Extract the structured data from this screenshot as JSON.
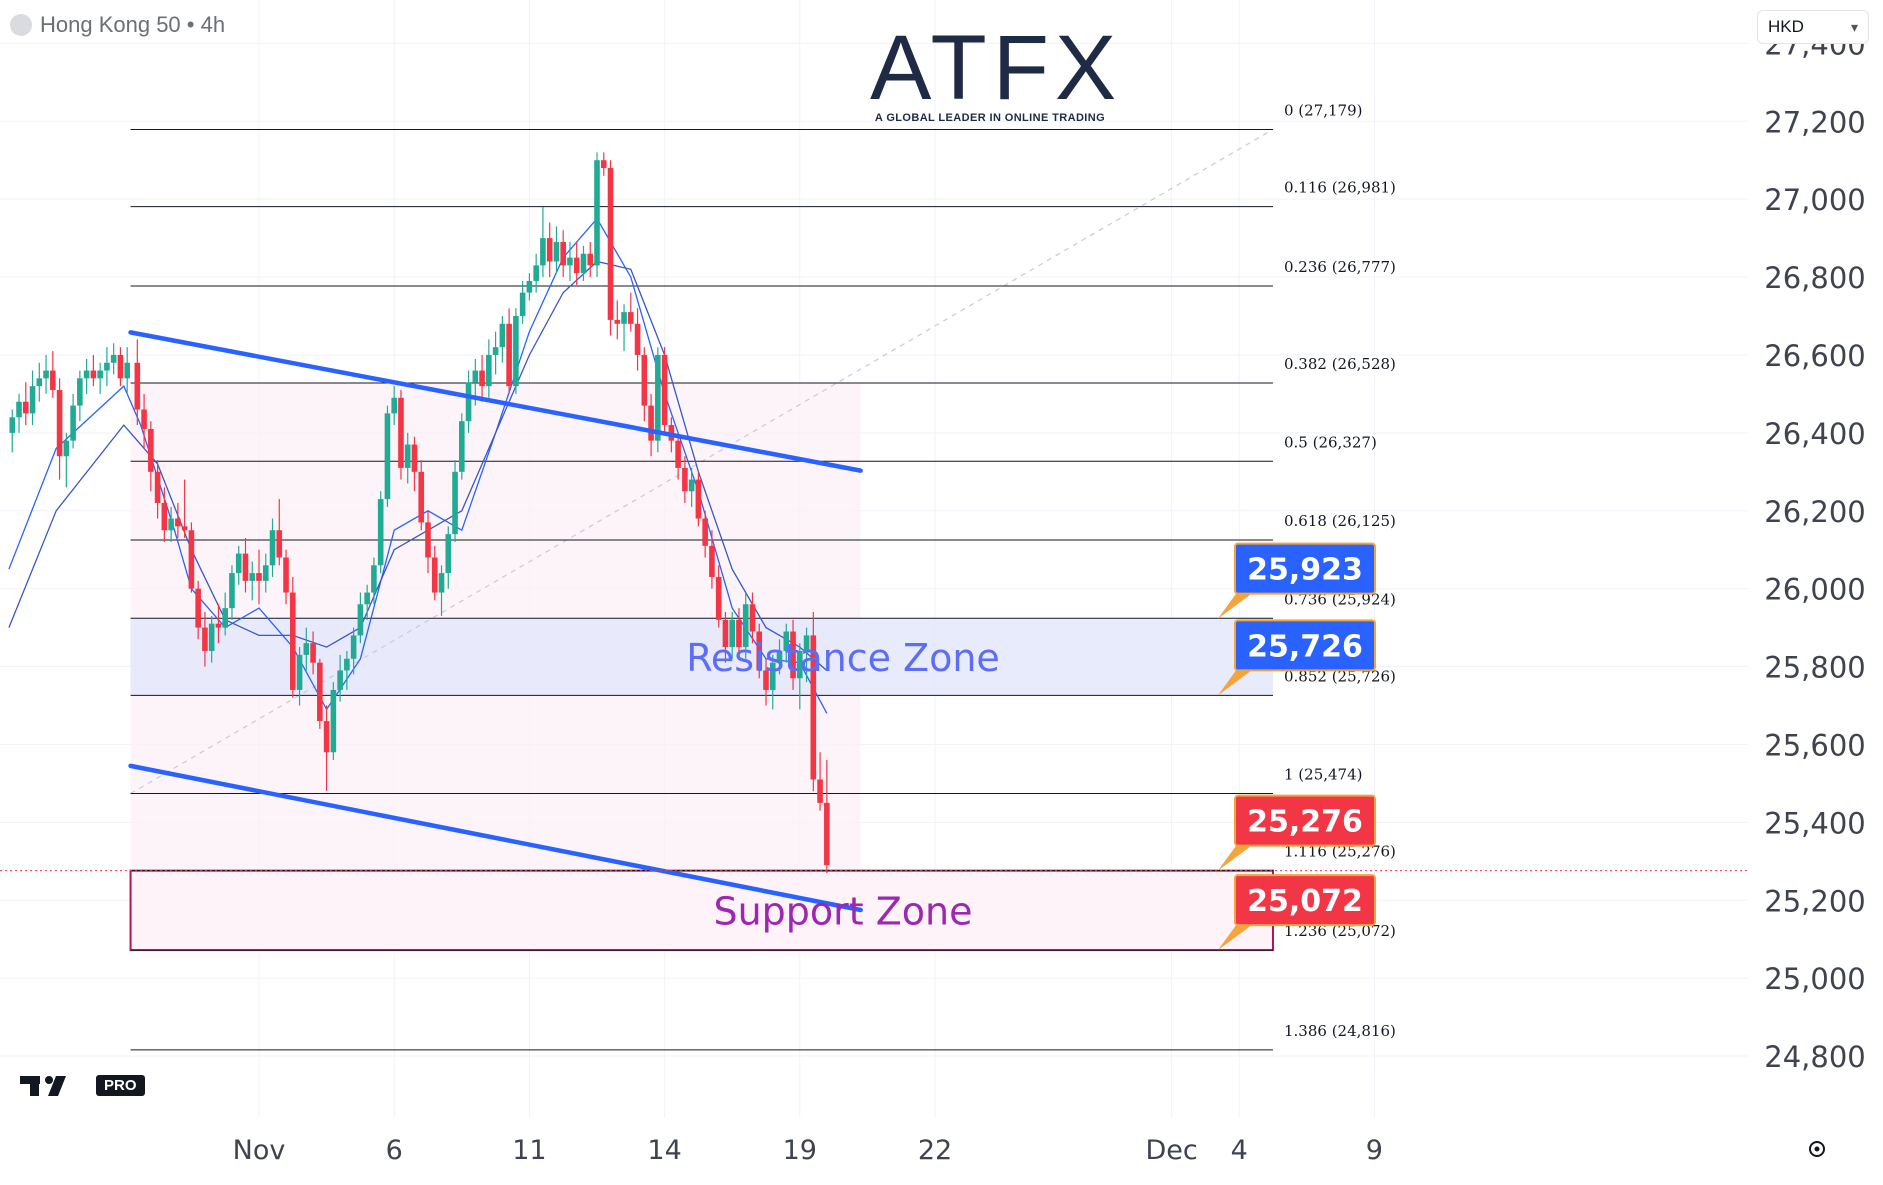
{
  "header": {
    "symbol_title": "Hong Kong 50 • 4h",
    "currency": "HKD"
  },
  "logo": {
    "brand": "ATFX",
    "tagline": "A GLOBAL LEADER IN ONLINE TRADING"
  },
  "watermark": {
    "label": "PRO"
  },
  "icons": {
    "symbol": "symbol-dot-icon",
    "dropdown": "chevron-down-icon",
    "settings": "gear-icon",
    "watermark": "tradingview-logo-icon"
  },
  "colors": {
    "up": "#22ab94",
    "down": "#f23645",
    "trendline": "#2962ff",
    "ma_fast": "#2962ff",
    "ma_slow": "#3a56c8",
    "resistance": "#5b6ef5",
    "support_border": "#b0165e",
    "support_text": "#9c27b0",
    "label_blue": "#2962ff",
    "label_red": "#f23645"
  },
  "chart_data": {
    "type": "candlestick",
    "ylim": [
      24700,
      27460
    ],
    "y_ticks": [
      "27,400",
      "27,200",
      "27,000",
      "26,800",
      "26,600",
      "26,400",
      "26,200",
      "26,000",
      "25,800",
      "25,600",
      "25,400",
      "25,200",
      "25,000",
      "24,800"
    ],
    "x_ticks": [
      "Nov",
      "6",
      "11",
      "14",
      "19",
      "22",
      "Dec",
      "4",
      "9"
    ],
    "fibonacci": [
      {
        "label": "0 (27,179)",
        "value": 27179
      },
      {
        "label": "0.116 (26,981)",
        "value": 26981
      },
      {
        "label": "0.236 (26,777)",
        "value": 26777
      },
      {
        "label": "0.382 (26,528)",
        "value": 26528
      },
      {
        "label": "0.5 (26,327)",
        "value": 26327
      },
      {
        "label": "0.618 (26,125)",
        "value": 26125
      },
      {
        "label": "0.736 (25,924)",
        "value": 25924
      },
      {
        "label": "0.852 (25,726)",
        "value": 25726
      },
      {
        "label": "1 (25,474)",
        "value": 25474
      },
      {
        "label": "1.116 (25,276)",
        "value": 25276
      },
      {
        "label": "1.236 (25,072)",
        "value": 25072
      },
      {
        "label": "1.386 (24,816)",
        "value": 24816
      }
    ],
    "zones": [
      {
        "label": "Resistance Zone",
        "from": 25726,
        "to": 25924
      },
      {
        "label": "Support Zone",
        "from": 25072,
        "to": 25276
      }
    ],
    "price_labels": [
      {
        "text": "25,923",
        "value": 25923
      },
      {
        "text": "25,726",
        "value": 25726
      },
      {
        "text": "25,276",
        "value": 25276
      },
      {
        "text": "25,072",
        "value": 25072
      }
    ],
    "channel": {
      "upper": {
        "from": [
          -3.8,
          26658
        ],
        "to": [
          17.8,
          26303
        ]
      },
      "lower": {
        "from": [
          -3.8,
          25545
        ],
        "to": [
          17.8,
          25175
        ]
      }
    },
    "candles": [
      [
        -7.3,
        26400,
        26460,
        26350,
        26440
      ],
      [
        -7.1,
        26440,
        26500,
        26400,
        26480
      ],
      [
        -6.9,
        26480,
        26530,
        26420,
        26450
      ],
      [
        -6.7,
        26450,
        26560,
        26420,
        26520
      ],
      [
        -6.5,
        26520,
        26580,
        26480,
        26540
      ],
      [
        -6.3,
        26540,
        26600,
        26500,
        26560
      ],
      [
        -6.1,
        26560,
        26610,
        26490,
        26510
      ],
      [
        -5.9,
        26510,
        26540,
        26280,
        26340
      ],
      [
        -5.7,
        26340,
        26400,
        26260,
        26380
      ],
      [
        -5.5,
        26380,
        26500,
        26360,
        26470
      ],
      [
        -5.3,
        26470,
        26560,
        26430,
        26540
      ],
      [
        -5.1,
        26540,
        26590,
        26500,
        26560
      ],
      [
        -4.9,
        26560,
        26600,
        26520,
        26540
      ],
      [
        -4.7,
        26540,
        26580,
        26500,
        26560
      ],
      [
        -4.5,
        26560,
        26620,
        26520,
        26580
      ],
      [
        -4.3,
        26580,
        26630,
        26550,
        26600
      ],
      [
        -4.1,
        26600,
        26620,
        26520,
        26540
      ],
      [
        -3.9,
        26540,
        26620,
        26500,
        26580
      ],
      [
        -3.6,
        26580,
        26640,
        26420,
        26460
      ],
      [
        -3.4,
        26460,
        26500,
        26360,
        26410
      ],
      [
        -3.2,
        26410,
        26430,
        26250,
        26300
      ],
      [
        -3.0,
        26300,
        26330,
        26180,
        26220
      ],
      [
        -2.8,
        26220,
        26260,
        26120,
        26150
      ],
      [
        -2.6,
        26150,
        26210,
        26120,
        26180
      ],
      [
        -2.4,
        26180,
        26220,
        26130,
        26160
      ],
      [
        -2.2,
        26160,
        26280,
        26130,
        26150
      ],
      [
        -2.0,
        26150,
        26170,
        25990,
        26000
      ],
      [
        -1.8,
        26000,
        26020,
        25870,
        25900
      ],
      [
        -1.6,
        25900,
        25940,
        25800,
        25840
      ],
      [
        -1.4,
        25840,
        25930,
        25810,
        25910
      ],
      [
        -1.2,
        25910,
        25960,
        25860,
        25900
      ],
      [
        -1.0,
        25900,
        25990,
        25880,
        25950
      ],
      [
        -0.8,
        25950,
        26060,
        25920,
        26040
      ],
      [
        -0.6,
        26040,
        26110,
        26010,
        26090
      ],
      [
        -0.4,
        26090,
        26130,
        25990,
        26020
      ],
      [
        -0.2,
        26020,
        26070,
        25970,
        26040
      ],
      [
        0.0,
        26040,
        26100,
        25960,
        26020
      ],
      [
        0.2,
        26020,
        26090,
        25990,
        26060
      ],
      [
        0.4,
        26060,
        26180,
        26030,
        26150
      ],
      [
        0.6,
        26150,
        26230,
        26060,
        26080
      ],
      [
        0.8,
        26080,
        26100,
        25960,
        25990
      ],
      [
        1.0,
        25990,
        26030,
        25720,
        25740
      ],
      [
        1.2,
        25740,
        25850,
        25700,
        25830
      ],
      [
        1.4,
        25830,
        25900,
        25790,
        25860
      ],
      [
        1.6,
        25860,
        25890,
        25780,
        25810
      ],
      [
        1.8,
        25810,
        25820,
        25640,
        25660
      ],
      [
        2.0,
        25660,
        25700,
        25480,
        25580
      ],
      [
        2.2,
        25580,
        25760,
        25560,
        25740
      ],
      [
        2.4,
        25740,
        25830,
        25710,
        25790
      ],
      [
        2.6,
        25790,
        25840,
        25740,
        25820
      ],
      [
        2.8,
        25820,
        25900,
        25780,
        25880
      ],
      [
        3.0,
        25880,
        25990,
        25860,
        25960
      ],
      [
        3.2,
        25960,
        26010,
        25920,
        25990
      ],
      [
        3.4,
        25990,
        26080,
        25960,
        26060
      ],
      [
        3.6,
        26060,
        26250,
        26040,
        26230
      ],
      [
        3.8,
        26230,
        26470,
        26210,
        26450
      ],
      [
        4.0,
        26450,
        26520,
        26420,
        26490
      ],
      [
        4.2,
        26490,
        26510,
        26280,
        26310
      ],
      [
        4.4,
        26310,
        26400,
        26270,
        26370
      ],
      [
        4.6,
        26370,
        26390,
        26250,
        26300
      ],
      [
        4.8,
        26300,
        26330,
        26150,
        26170
      ],
      [
        5.0,
        26170,
        26200,
        26040,
        26080
      ],
      [
        5.2,
        26080,
        26110,
        25970,
        25990
      ],
      [
        5.4,
        25990,
        26060,
        25930,
        26040
      ],
      [
        5.6,
        26040,
        26160,
        26000,
        26140
      ],
      [
        5.8,
        26140,
        26330,
        26120,
        26300
      ],
      [
        6.0,
        26300,
        26450,
        26280,
        26430
      ],
      [
        6.2,
        26430,
        26560,
        26400,
        26530
      ],
      [
        6.4,
        26530,
        26590,
        26470,
        26560
      ],
      [
        6.6,
        26560,
        26600,
        26480,
        26520
      ],
      [
        6.8,
        26520,
        26640,
        26490,
        26600
      ],
      [
        7.0,
        26600,
        26660,
        26550,
        26620
      ],
      [
        7.2,
        26620,
        26700,
        26580,
        26680
      ],
      [
        7.4,
        26680,
        26720,
        26500,
        26520
      ],
      [
        7.6,
        26520,
        26720,
        26500,
        26700
      ],
      [
        7.8,
        26700,
        26790,
        26680,
        26760
      ],
      [
        8.0,
        26760,
        26810,
        26740,
        26790
      ],
      [
        8.2,
        26790,
        26860,
        26760,
        26830
      ],
      [
        8.4,
        26830,
        26980,
        26800,
        26900
      ],
      [
        8.6,
        26900,
        26940,
        26800,
        26840
      ],
      [
        8.8,
        26840,
        26930,
        26810,
        26890
      ],
      [
        9.0,
        26890,
        26920,
        26800,
        26830
      ],
      [
        9.2,
        26830,
        26890,
        26790,
        26850
      ],
      [
        9.4,
        26850,
        26890,
        26780,
        26810
      ],
      [
        9.6,
        26810,
        26880,
        26790,
        26860
      ],
      [
        9.8,
        26860,
        26890,
        26800,
        26830
      ],
      [
        10.0,
        26830,
        27120,
        26800,
        27100
      ],
      [
        10.2,
        27100,
        27120,
        27060,
        27080
      ],
      [
        10.4,
        27080,
        27100,
        26650,
        26690
      ],
      [
        10.6,
        26690,
        26740,
        26640,
        26680
      ],
      [
        10.8,
        26680,
        26730,
        26610,
        26710
      ],
      [
        11.0,
        26710,
        26760,
        26660,
        26680
      ],
      [
        11.2,
        26680,
        26720,
        26560,
        26600
      ],
      [
        11.4,
        26600,
        26620,
        26430,
        26470
      ],
      [
        11.6,
        26470,
        26500,
        26340,
        26380
      ],
      [
        11.8,
        26380,
        26620,
        26350,
        26600
      ],
      [
        12.0,
        26600,
        26620,
        26400,
        26420
      ],
      [
        12.2,
        26420,
        26440,
        26350,
        26380
      ],
      [
        12.4,
        26380,
        26400,
        26280,
        26310
      ],
      [
        12.6,
        26310,
        26340,
        26220,
        26250
      ],
      [
        12.8,
        26250,
        26310,
        26210,
        26280
      ],
      [
        13.0,
        26280,
        26300,
        26160,
        26180
      ],
      [
        13.2,
        26180,
        26200,
        26080,
        26110
      ],
      [
        13.4,
        26110,
        26150,
        26000,
        26030
      ],
      [
        13.6,
        26030,
        26060,
        25900,
        25920
      ],
      [
        13.8,
        25920,
        25940,
        25810,
        25850
      ],
      [
        14.0,
        25850,
        25940,
        25820,
        25920
      ],
      [
        14.2,
        25920,
        25950,
        25830,
        25850
      ],
      [
        14.4,
        25850,
        25990,
        25820,
        25960
      ],
      [
        14.6,
        25960,
        25990,
        25860,
        25890
      ],
      [
        14.8,
        25890,
        25910,
        25770,
        25790
      ],
      [
        15.0,
        25790,
        25820,
        25700,
        25740
      ],
      [
        15.2,
        25740,
        25830,
        25690,
        25810
      ],
      [
        15.4,
        25810,
        25870,
        25780,
        25840
      ],
      [
        15.6,
        25840,
        25910,
        25810,
        25890
      ],
      [
        15.8,
        25890,
        25920,
        25740,
        25770
      ],
      [
        16.0,
        25770,
        25860,
        25690,
        25840
      ],
      [
        16.2,
        25840,
        25900,
        25760,
        25880
      ],
      [
        16.4,
        25880,
        25940,
        25480,
        25510
      ],
      [
        16.6,
        25510,
        25580,
        25430,
        25450
      ],
      [
        16.8,
        25450,
        25560,
        25270,
        25290
      ]
    ],
    "moving_averages": [
      {
        "points": [
          [
            -7.4,
            26050
          ],
          [
            -6.0,
            26360
          ],
          [
            -4.0,
            26520
          ],
          [
            -3.5,
            26420
          ],
          [
            -2.5,
            26150
          ],
          [
            -2.0,
            26000
          ],
          [
            -1.0,
            25900
          ],
          [
            0.0,
            25950
          ],
          [
            1.0,
            25850
          ],
          [
            2.0,
            25690
          ],
          [
            3.0,
            25820
          ],
          [
            4.0,
            26150
          ],
          [
            5.0,
            26200
          ],
          [
            6.0,
            26150
          ],
          [
            7.0,
            26400
          ],
          [
            8.0,
            26660
          ],
          [
            9.0,
            26850
          ],
          [
            10.0,
            26950
          ],
          [
            11.0,
            26800
          ],
          [
            12.0,
            26500
          ],
          [
            13.0,
            26250
          ],
          [
            14.0,
            25950
          ],
          [
            15.0,
            25820
          ],
          [
            16.0,
            25810
          ],
          [
            16.8,
            25680
          ]
        ]
      },
      {
        "points": [
          [
            -7.4,
            25900
          ],
          [
            -6.0,
            26200
          ],
          [
            -4.0,
            26420
          ],
          [
            -3.0,
            26320
          ],
          [
            -2.0,
            26100
          ],
          [
            -1.0,
            25920
          ],
          [
            0.0,
            25880
          ],
          [
            1.0,
            25880
          ],
          [
            2.0,
            25850
          ],
          [
            3.0,
            25900
          ],
          [
            4.0,
            26100
          ],
          [
            5.0,
            26150
          ],
          [
            6.0,
            26200
          ],
          [
            7.0,
            26400
          ],
          [
            8.0,
            26600
          ],
          [
            9.0,
            26760
          ],
          [
            10.0,
            26840
          ],
          [
            11.0,
            26820
          ],
          [
            12.0,
            26600
          ],
          [
            13.0,
            26300
          ],
          [
            14.0,
            26050
          ],
          [
            15.0,
            25900
          ],
          [
            16.0,
            25850
          ],
          [
            16.8,
            25790
          ]
        ]
      }
    ]
  }
}
